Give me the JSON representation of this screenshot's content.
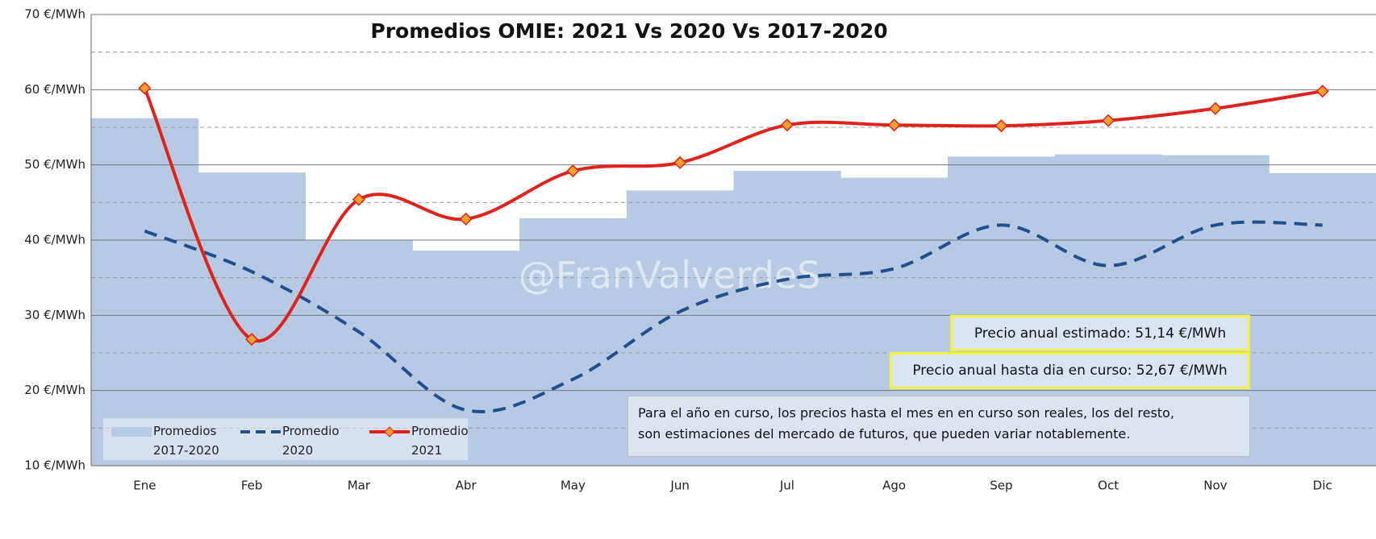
{
  "chart_data": {
    "type": "line",
    "title": "Promedios OMIE: 2021 Vs 2020 Vs 2017-2020",
    "categories": [
      "Ene",
      "Feb",
      "Mar",
      "Abr",
      "May",
      "Jun",
      "Jul",
      "Ago",
      "Sep",
      "Oct",
      "Nov",
      "Dic"
    ],
    "series": [
      {
        "name": "Promedios 2017-2020",
        "style": "step-area",
        "color": "#b7c9e3",
        "values": [
          56.2,
          49,
          40,
          38.6,
          42.9,
          46.6,
          49.2,
          48.3,
          51.1,
          51.4,
          51.3,
          48.9
        ]
      },
      {
        "name": "Promedio 2020",
        "style": "dashed",
        "color": "#1f4f8f",
        "values": [
          41.2,
          35.8,
          27.8,
          17.4,
          21.5,
          30.5,
          34.8,
          36.2,
          42,
          36.6,
          42,
          42
        ]
      },
      {
        "name": "Promedio 2021",
        "style": "solid-markers",
        "color": "#e0221c",
        "marker_color": "#f0a030",
        "values": [
          60.2,
          26.8,
          45.4,
          42.8,
          49.2,
          50.3,
          55.3,
          55.3,
          55.2,
          55.9,
          57.5,
          59.8
        ]
      }
    ],
    "ylim": [
      10,
      70
    ],
    "yticks": [
      {
        "value": 10,
        "label": "10 €/MWh"
      },
      {
        "value": 20,
        "label": "20 €/MWh"
      },
      {
        "value": 30,
        "label": "30 €/MWh"
      },
      {
        "value": 40,
        "label": "40 €/MWh"
      },
      {
        "value": 50,
        "label": "50 €/MWh"
      },
      {
        "value": 60,
        "label": "60 €/MWh"
      },
      {
        "value": 70,
        "label": "70 €/MWh"
      }
    ],
    "minor_yticks": [
      15,
      25,
      35,
      45,
      55,
      65
    ],
    "grid": true,
    "legend": "bottom-left",
    "watermark": "@FranValverdeS",
    "annotations": [
      "Precio anual estimado: 51,14  €/MWh",
      "Precio anual hasta dia en curso: 52,67  €/MWh"
    ],
    "note": [
      "Para el año en curso, los precios hasta el mes en en curso son reales, los del resto,",
      "son estimaciones del mercado de futuros, que pueden variar notablemente."
    ]
  }
}
